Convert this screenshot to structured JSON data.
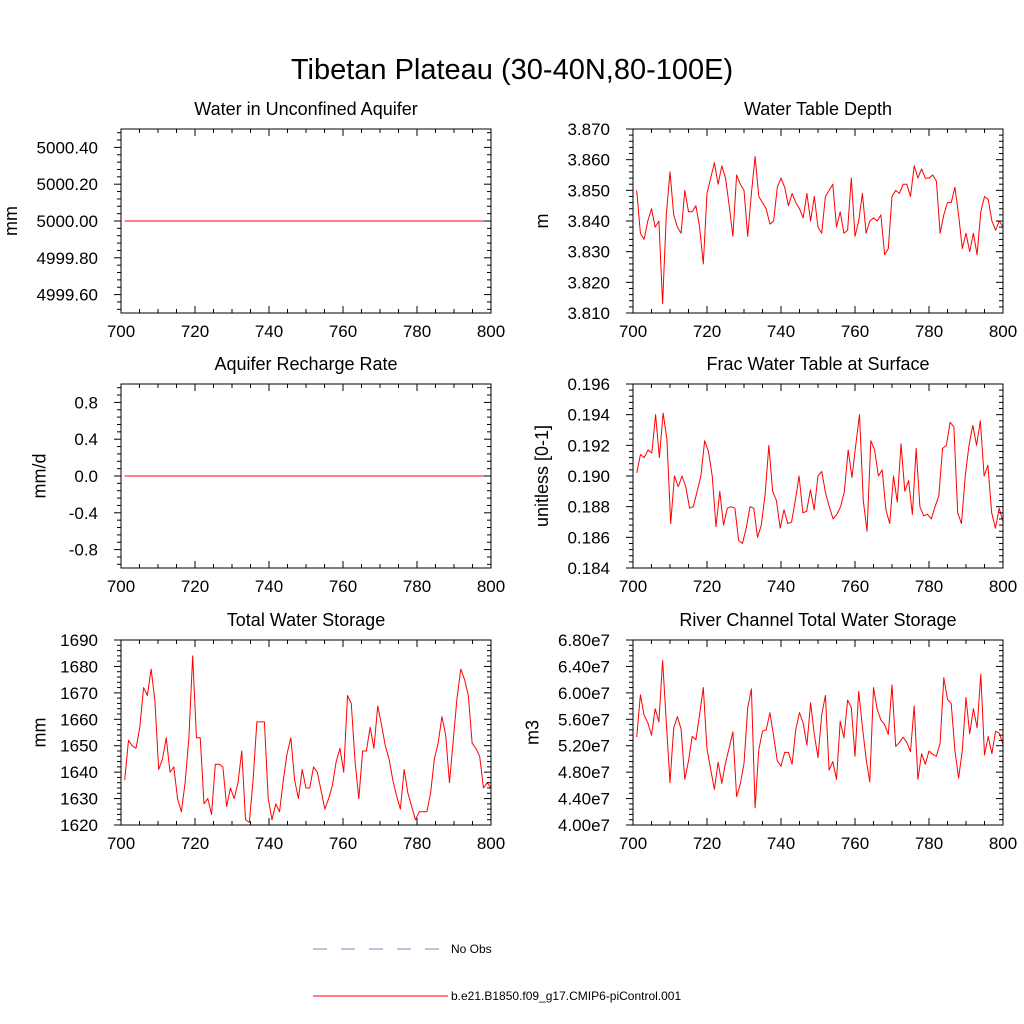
{
  "title": "Tibetan Plateau (30-40N,80-100E)",
  "colors": {
    "model": "#ff0000",
    "obs": "#7f7fbf",
    "axis": "#000000"
  },
  "legend": [
    {
      "label": "No Obs",
      "style": "dashed",
      "color": "#7f7fbf"
    },
    {
      "label": "b.e21.B1850.f09_g17.CMIP6-piControl.001",
      "style": "solid",
      "color": "#ff0000"
    }
  ],
  "chart_data": [
    {
      "type": "line",
      "title": "Water in Unconfined Aquifer",
      "ylabel": "mm",
      "xlim": [
        700,
        800
      ],
      "ylim": [
        4999.5,
        5000.5
      ],
      "xticks": [
        700,
        720,
        740,
        760,
        780,
        800
      ],
      "xtick_labels": [
        "700",
        "720",
        "740",
        "760",
        "780",
        "800"
      ],
      "yticks": [
        4999.6,
        4999.8,
        5000.0,
        5000.2,
        5000.4
      ],
      "ytick_labels": [
        "4999.60",
        "4999.80",
        "5000.00",
        "5000.20",
        "5000.40"
      ],
      "series": [
        {
          "x_start": 701,
          "x_end": 800,
          "values": [
            5000.0,
            5000.0
          ]
        }
      ]
    },
    {
      "type": "line",
      "title": "Water Table Depth",
      "ylabel": "m",
      "xlim": [
        700,
        800
      ],
      "ylim": [
        3.81,
        3.87
      ],
      "xticks": [
        700,
        720,
        740,
        760,
        780,
        800
      ],
      "xtick_labels": [
        "700",
        "720",
        "740",
        "760",
        "780",
        "800"
      ],
      "yticks": [
        3.81,
        3.82,
        3.83,
        3.84,
        3.85,
        3.86,
        3.87
      ],
      "ytick_labels": [
        "3.810",
        "3.820",
        "3.830",
        "3.840",
        "3.850",
        "3.860",
        "3.870"
      ],
      "series": [
        {
          "x_start": 701,
          "x_end": 800,
          "values": [
            3.85,
            3.836,
            3.834,
            3.84,
            3.844,
            3.838,
            3.84,
            3.813,
            3.842,
            3.856,
            3.842,
            3.838,
            3.836,
            3.85,
            3.843,
            3.843,
            3.845,
            3.838,
            3.826,
            3.849,
            3.854,
            3.859,
            3.852,
            3.858,
            3.854,
            3.845,
            3.835,
            3.855,
            3.852,
            3.85,
            3.835,
            3.849,
            3.861,
            3.848,
            3.846,
            3.844,
            3.839,
            3.84,
            3.851,
            3.854,
            3.851,
            3.845,
            3.849,
            3.846,
            3.844,
            3.841,
            3.849,
            3.84,
            3.848,
            3.838,
            3.836,
            3.848,
            3.85,
            3.852,
            3.838,
            3.843,
            3.836,
            3.837,
            3.854,
            3.835,
            3.84,
            3.849,
            3.836,
            3.84,
            3.841,
            3.84,
            3.842,
            3.829,
            3.831,
            3.848,
            3.85,
            3.849,
            3.852,
            3.852,
            3.848,
            3.858,
            3.854,
            3.857,
            3.854,
            3.854,
            3.855,
            3.853,
            3.836,
            3.842,
            3.846,
            3.846,
            3.851,
            3.842,
            3.831,
            3.836,
            3.83,
            3.836,
            3.829,
            3.843,
            3.848,
            3.847,
            3.84,
            3.837,
            3.84,
            3.838
          ]
        }
      ]
    },
    {
      "type": "line",
      "title": "Aquifer Recharge Rate",
      "ylabel": "mm/d",
      "xlim": [
        700,
        800
      ],
      "ylim": [
        -1.0,
        1.0
      ],
      "xticks": [
        700,
        720,
        740,
        760,
        780,
        800
      ],
      "xtick_labels": [
        "700",
        "720",
        "740",
        "760",
        "780",
        "800"
      ],
      "yticks": [
        -0.8,
        -0.4,
        0.0,
        0.4,
        0.8
      ],
      "ytick_labels": [
        "-0.8",
        "-0.4",
        "0.0",
        "0.4",
        "0.8"
      ],
      "series": [
        {
          "x_start": 701,
          "x_end": 800,
          "values": [
            0.0,
            0.0
          ]
        }
      ]
    },
    {
      "type": "line",
      "title": "Frac Water Table at Surface",
      "ylabel": "unitless [0-1]",
      "xlim": [
        700,
        800
      ],
      "ylim": [
        0.184,
        0.196
      ],
      "xticks": [
        700,
        720,
        740,
        760,
        780,
        800
      ],
      "xtick_labels": [
        "700",
        "720",
        "740",
        "760",
        "780",
        "800"
      ],
      "yticks": [
        0.184,
        0.186,
        0.188,
        0.19,
        0.192,
        0.194,
        0.196
      ],
      "ytick_labels": [
        "0.184",
        "0.186",
        "0.188",
        "0.190",
        "0.192",
        "0.194",
        "0.196"
      ],
      "series": [
        {
          "x_start": 701,
          "x_end": 800,
          "values": [
            0.1902,
            0.1914,
            0.1912,
            0.1917,
            0.1915,
            0.194,
            0.1912,
            0.1941,
            0.1924,
            0.1869,
            0.19,
            0.1893,
            0.19,
            0.1893,
            0.1879,
            0.188,
            0.189,
            0.19,
            0.1923,
            0.1916,
            0.19,
            0.1867,
            0.189,
            0.1868,
            0.1879,
            0.188,
            0.1879,
            0.1858,
            0.1856,
            0.1866,
            0.188,
            0.1879,
            0.186,
            0.1868,
            0.1888,
            0.192,
            0.189,
            0.1884,
            0.1866,
            0.1878,
            0.1869,
            0.187,
            0.1884,
            0.19,
            0.1876,
            0.1877,
            0.1891,
            0.1878,
            0.19,
            0.1903,
            0.1889,
            0.188,
            0.1872,
            0.1875,
            0.188,
            0.189,
            0.1917,
            0.1899,
            0.192,
            0.194,
            0.1884,
            0.1864,
            0.1923,
            0.1917,
            0.19,
            0.1904,
            0.1878,
            0.1869,
            0.19,
            0.1883,
            0.1921,
            0.189,
            0.1897,
            0.1875,
            0.1918,
            0.188,
            0.1874,
            0.1875,
            0.1872,
            0.188,
            0.1887,
            0.1918,
            0.192,
            0.1935,
            0.1932,
            0.1876,
            0.1869,
            0.19,
            0.192,
            0.1933,
            0.192,
            0.1936,
            0.19,
            0.1907,
            0.1876,
            0.1866,
            0.1879,
            0.187
          ]
        }
      ]
    },
    {
      "type": "line",
      "title": "Total Water Storage",
      "ylabel": "mm",
      "xlim": [
        700,
        800
      ],
      "ylim": [
        1620,
        1690
      ],
      "xticks": [
        700,
        720,
        740,
        760,
        780,
        800
      ],
      "xtick_labels": [
        "700",
        "720",
        "740",
        "760",
        "780",
        "800"
      ],
      "yticks": [
        1620,
        1630,
        1640,
        1650,
        1660,
        1670,
        1680,
        1690
      ],
      "ytick_labels": [
        "1620",
        "1630",
        "1640",
        "1650",
        "1660",
        "1670",
        "1680",
        "1690"
      ],
      "series": [
        {
          "x_start": 701,
          "x_end": 800,
          "values": [
            1637,
            1652,
            1650,
            1649,
            1657,
            1672,
            1669,
            1679,
            1667,
            1641,
            1645,
            1653,
            1640,
            1642,
            1630,
            1625,
            1636,
            1653,
            1684,
            1653,
            1653,
            1628,
            1630,
            1624,
            1643,
            1643,
            1642,
            1627,
            1634,
            1630,
            1636,
            1648,
            1622,
            1621,
            1637,
            1659,
            1659,
            1659,
            1630,
            1622,
            1628,
            1625,
            1637,
            1647,
            1653,
            1637,
            1630,
            1641,
            1634,
            1634,
            1642,
            1640,
            1633,
            1626,
            1630,
            1635,
            1644,
            1649,
            1640,
            1669,
            1666,
            1644,
            1630,
            1648,
            1648,
            1657,
            1649,
            1665,
            1658,
            1650,
            1645,
            1637,
            1631,
            1626,
            1641,
            1632,
            1627,
            1622,
            1625,
            1625,
            1625,
            1632,
            1645,
            1651,
            1661,
            1654,
            1636,
            1652,
            1668,
            1679,
            1675,
            1669,
            1651,
            1649,
            1646,
            1634,
            1636,
            1634
          ]
        }
      ]
    },
    {
      "type": "line",
      "title": "River Channel Total Water Storage",
      "ylabel": "m3",
      "xlim": [
        700,
        800
      ],
      "ylim": [
        40000000,
        68000000
      ],
      "xticks": [
        700,
        720,
        740,
        760,
        780,
        800
      ],
      "xtick_labels": [
        "700",
        "720",
        "740",
        "760",
        "780",
        "800"
      ],
      "yticks": [
        40000000,
        44000000,
        48000000,
        52000000,
        56000000,
        60000000,
        64000000,
        68000000
      ],
      "ytick_labels": [
        "4.00e7",
        "4.40e7",
        "4.80e7",
        "5.20e7",
        "5.60e7",
        "6.00e7",
        "6.40e7",
        "6.80e7"
      ],
      "series": [
        {
          "x_start": 701,
          "x_end": 800,
          "values": [
            53300000,
            59700000,
            56600000,
            55500000,
            53600000,
            57600000,
            55600000,
            64900000,
            55600000,
            46400000,
            54700000,
            56400000,
            54500000,
            46900000,
            49700000,
            53400000,
            52900000,
            56700000,
            60800000,
            51500000,
            48400000,
            45400000,
            49500000,
            46300000,
            49400000,
            51700000,
            54100000,
            44300000,
            46200000,
            49300000,
            57700000,
            60600000,
            42600000,
            51400000,
            54200000,
            54400000,
            57000000,
            53500000,
            49700000,
            48900000,
            51000000,
            51000000,
            49200000,
            54500000,
            57000000,
            55400000,
            52100000,
            58500000,
            53700000,
            50200000,
            56700000,
            59600000,
            48300000,
            49600000,
            46900000,
            55700000,
            53200000,
            58900000,
            57800000,
            50400000,
            60200000,
            54900000,
            50000000,
            46500000,
            60800000,
            57500000,
            55900000,
            55200000,
            53700000,
            61200000,
            51900000,
            52500000,
            53300000,
            52500000,
            51100000,
            58000000,
            46900000,
            50800000,
            49200000,
            51200000,
            50700000,
            50400000,
            52400000,
            62300000,
            59000000,
            58400000,
            51300000,
            47100000,
            51300000,
            59300000,
            53800000,
            57600000,
            54700000,
            62800000,
            50600000,
            53400000,
            50800000,
            54200000,
            53900000,
            52200000
          ]
        }
      ]
    }
  ]
}
